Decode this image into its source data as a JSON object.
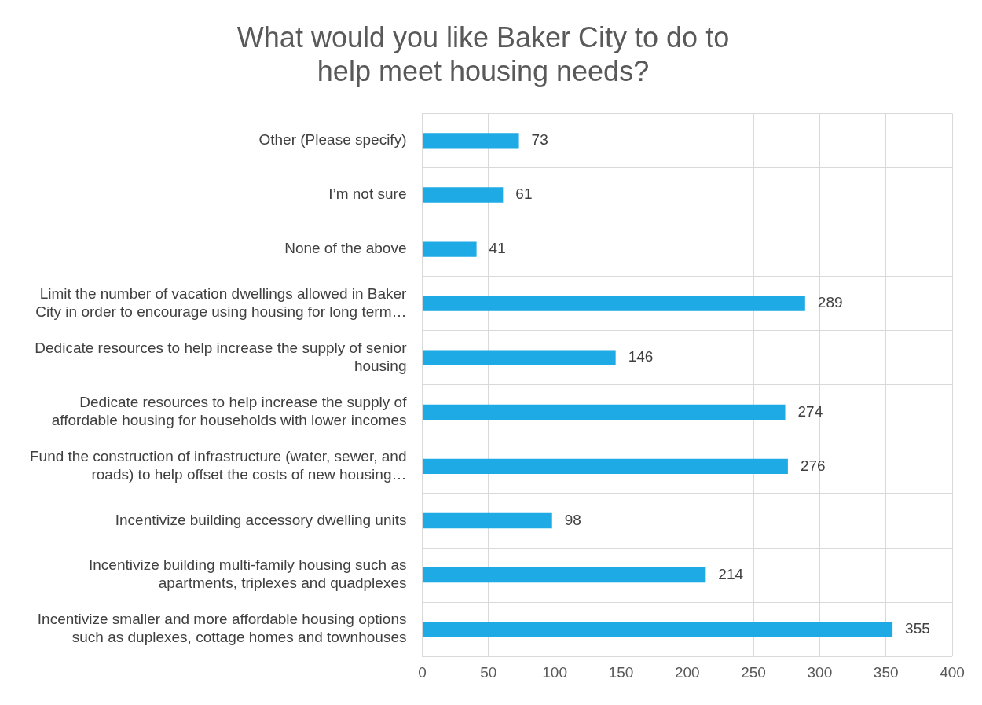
{
  "chart_data": {
    "type": "bar",
    "orientation": "horizontal",
    "title": "What would you like Baker City to do to help meet housing needs?",
    "categories": [
      "Other (Please specify)",
      "I’m not sure",
      "None of the above",
      "Limit the number of vacation dwellings allowed in Baker City in order to encourage using housing for long term…",
      "Dedicate resources to help increase the supply of senior housing",
      "Dedicate resources to help increase the supply of affordable housing for households with lower incomes",
      "Fund the construction of infrastructure (water, sewer, and roads) to help offset the costs of new housing…",
      "Incentivize building accessory dwelling units",
      "Incentivize building multi-family housing such as apartments, triplexes and quadplexes",
      "Incentivize smaller and more affordable housing options such as duplexes, cottage homes and townhouses"
    ],
    "values": [
      73,
      61,
      41,
      289,
      146,
      274,
      276,
      98,
      214,
      355
    ],
    "color": "#1eaae4",
    "xlim": [
      0,
      400
    ],
    "xticks": [
      0,
      50,
      100,
      150,
      200,
      250,
      300,
      350,
      400
    ],
    "grid": true,
    "data_labels": true,
    "legend": false
  }
}
